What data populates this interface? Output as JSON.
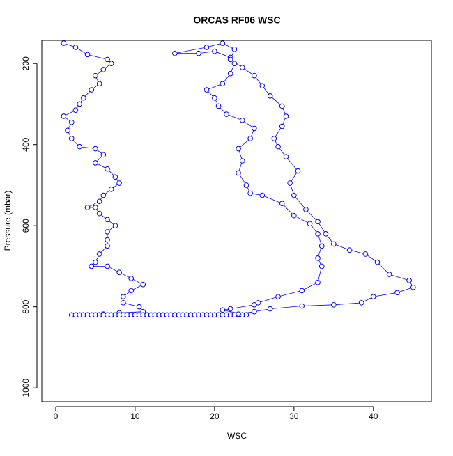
{
  "chart_data": {
    "type": "scatter",
    "title": "ORCAS RF06 WSC",
    "x_label": "WSC",
    "y_label": "Pressure (mbar)",
    "xlim": [
      -1.75,
      47.3
    ],
    "ylim": [
      143,
      1034
    ],
    "y_reversed": true,
    "xticks": [
      0,
      10,
      20,
      30,
      40
    ],
    "yticks": [
      200,
      400,
      600,
      800,
      1000
    ],
    "series": [
      {
        "color": "#0000ff",
        "x": [
          1,
          2.5,
          4,
          6.5,
          7,
          6,
          5,
          5.5,
          4.5,
          3.5,
          3,
          2.5,
          1,
          2,
          1.5,
          2,
          3,
          5,
          6,
          5,
          6.5,
          7.5,
          8,
          7,
          6,
          5.5,
          4,
          5,
          5.5,
          6.5,
          7.5,
          6.5,
          6.5,
          6.5,
          5.5,
          5,
          4.5,
          6.5,
          8,
          9.5,
          11,
          9.5,
          8.5,
          8.5,
          10.5,
          11,
          8,
          6,
          2,
          2.5,
          3,
          3.5,
          4,
          4.5,
          5,
          5.5,
          6,
          6.5,
          7,
          7.5,
          8,
          8.5,
          9,
          9.5,
          10,
          10.5,
          11,
          11.5,
          12,
          12.5,
          13,
          13.5,
          14,
          14.5,
          15,
          15.5,
          16,
          16.5,
          17,
          17.5,
          18,
          18.5,
          19,
          19.5,
          20,
          20.5,
          21,
          21.5,
          22,
          22.5,
          23,
          23.5,
          24,
          21,
          22,
          25,
          25.5,
          28,
          31,
          33,
          33.5,
          33,
          33.5,
          33,
          32,
          30,
          28.5,
          26,
          24.5,
          24,
          23,
          23.5,
          23,
          24.5,
          25,
          23.5,
          21.5,
          20.5,
          20,
          19,
          21,
          22,
          22.5,
          22,
          20,
          18,
          15,
          19,
          21,
          22.5,
          22,
          23.5,
          25,
          26,
          27,
          28.5,
          29,
          28.5,
          27.5,
          28,
          29,
          30.5,
          29.5,
          30,
          31.5,
          33,
          34,
          35,
          37,
          39,
          40.5,
          42,
          44.5,
          45,
          43,
          40,
          38.5,
          35,
          31,
          27,
          25,
          23
        ],
        "values": [
          150,
          160,
          178,
          190,
          200,
          215,
          230,
          250,
          265,
          285,
          300,
          315,
          330,
          345,
          365,
          385,
          405,
          410,
          425,
          445,
          460,
          480,
          495,
          510,
          525,
          540,
          555,
          555,
          570,
          585,
          600,
          615,
          635,
          650,
          670,
          690,
          700,
          700,
          715,
          730,
          745,
          760,
          775,
          790,
          800,
          812,
          815,
          818,
          820,
          820,
          820,
          820,
          820,
          820,
          820,
          820,
          820,
          820,
          820,
          820,
          820,
          820,
          820,
          820,
          820,
          820,
          820,
          820,
          820,
          820,
          820,
          820,
          820,
          820,
          820,
          820,
          820,
          820,
          820,
          820,
          820,
          820,
          820,
          820,
          820,
          820,
          820,
          820,
          820,
          820,
          820,
          820,
          820,
          808,
          805,
          795,
          790,
          775,
          760,
          740,
          700,
          680,
          650,
          620,
          595,
          575,
          545,
          525,
          520,
          500,
          470,
          440,
          410,
          385,
          360,
          340,
          325,
          305,
          285,
          265,
          250,
          225,
          200,
          185,
          170,
          175,
          175,
          160,
          150,
          165,
          190,
          210,
          230,
          255,
          280,
          305,
          330,
          355,
          385,
          405,
          430,
          465,
          495,
          525,
          560,
          590,
          620,
          645,
          660,
          670,
          690,
          720,
          735,
          752,
          765,
          775,
          790,
          795,
          798,
          805,
          812,
          818
        ]
      }
    ]
  }
}
